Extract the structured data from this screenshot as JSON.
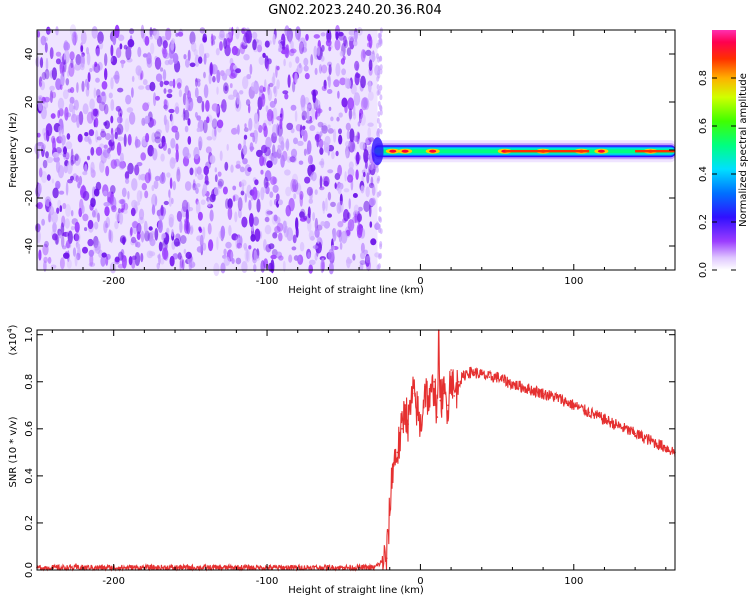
{
  "title": "GN02.2023.240.20.36.R04",
  "colors": {
    "snr_line": "#e53030",
    "spec_noise": "#7a1cf0",
    "colormap": [
      "#ffffff",
      "#e8d4ff",
      "#9b3cff",
      "#3b10ff",
      "#0068ff",
      "#00e0ff",
      "#00ff60",
      "#c0ff00",
      "#ffd000",
      "#ff4000",
      "#ff0030",
      "#ff40c0"
    ]
  },
  "chart_data": [
    {
      "type": "heatmap",
      "name": "spectrogram",
      "xlabel": "Height of straight line (km)",
      "ylabel": "Frequency (Hz)",
      "xlim": [
        -250,
        166
      ],
      "ylim": [
        -50,
        50
      ],
      "xticks": [
        -200,
        -100,
        0,
        100
      ],
      "xtick_labels": [
        "-200",
        "-100",
        "0",
        "100"
      ],
      "yticks": [
        -40,
        -20,
        0,
        20,
        40
      ],
      "ytick_labels": [
        "-40",
        "-20",
        "0",
        "20",
        "40"
      ],
      "noise_region_x": [
        -250,
        -28
      ],
      "signal_band_hz": [
        -3,
        2
      ],
      "signal_region_x": [
        -30,
        166
      ],
      "signal_peak_x": [
        -18,
        -10,
        8,
        55,
        80,
        105,
        118,
        150
      ],
      "colorbar": {
        "label": "Normalized spectral amplitude",
        "ticks": [
          0.0,
          0.2,
          0.4,
          0.6,
          0.8
        ],
        "tick_labels": [
          "0.0",
          "0.2",
          "0.4",
          "0.6",
          "0.8"
        ],
        "range": [
          0,
          1
        ]
      }
    },
    {
      "type": "line",
      "name": "snr",
      "xlabel": "Height of straight line (km)",
      "ylabel": "SNR (10 * v/v)",
      "y_multiplier_label": "(x10",
      "y_multiplier_exp": "4",
      "y_multiplier_close": ")",
      "xlim": [
        -250,
        166
      ],
      "ylim": [
        0,
        1.02
      ],
      "xticks": [
        -200,
        -100,
        0,
        100
      ],
      "xtick_labels": [
        "-200",
        "-100",
        "0",
        "100"
      ],
      "yticks": [
        0.0,
        0.2,
        0.4,
        0.6,
        0.8,
        1.0
      ],
      "ytick_labels": [
        "0.0",
        "0.2",
        "0.4",
        "0.6",
        "0.8",
        "1.0"
      ],
      "series": [
        {
          "x": [
            -250,
            -200,
            -150,
            -100,
            -50,
            -30,
            -22,
            -20,
            -18,
            -15,
            -12,
            -10,
            -8,
            -5,
            -2,
            0,
            3,
            6,
            9,
            11,
            12,
            13,
            15,
            18,
            20,
            22,
            25,
            28,
            30,
            35,
            40,
            45,
            50,
            60,
            70,
            80,
            90,
            100,
            110,
            120,
            130,
            140,
            150,
            160,
            166
          ],
          "y": [
            0.01,
            0.01,
            0.01,
            0.01,
            0.01,
            0.01,
            0.05,
            0.25,
            0.45,
            0.5,
            0.6,
            0.7,
            0.62,
            0.75,
            0.68,
            0.6,
            0.78,
            0.7,
            0.8,
            0.65,
            1.02,
            0.72,
            0.75,
            0.7,
            0.85,
            0.74,
            0.8,
            0.82,
            0.84,
            0.84,
            0.83,
            0.82,
            0.82,
            0.79,
            0.77,
            0.75,
            0.73,
            0.7,
            0.67,
            0.64,
            0.61,
            0.58,
            0.55,
            0.52,
            0.5
          ]
        }
      ]
    }
  ]
}
